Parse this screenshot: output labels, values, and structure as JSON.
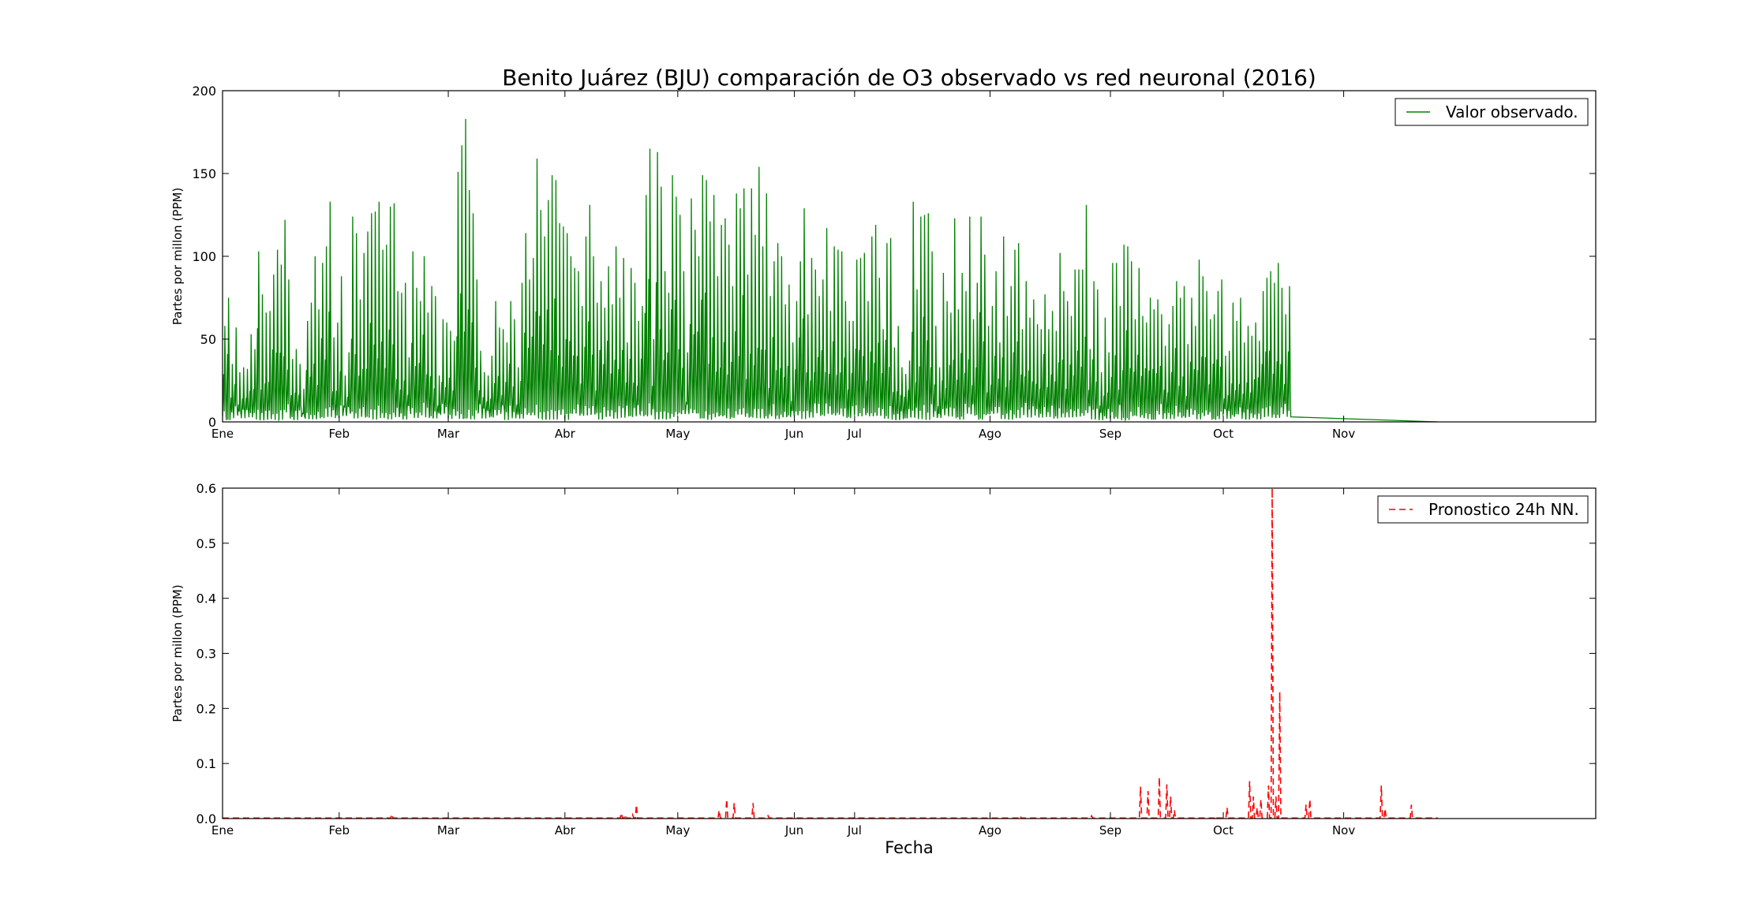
{
  "colors": {
    "observed": "#008000",
    "forecast": "#ff0000",
    "axes": "#000000",
    "background": "#ffffff"
  },
  "chart_data": [
    {
      "type": "line",
      "title": "Benito Juárez (BJU) comparación de O3 observado vs red neuronal (2016)",
      "xlabel": "",
      "ylabel": "Partes por millon (PPM)",
      "x_unit": "day of year (2016)",
      "xlim": [
        0,
        365
      ],
      "ylim": [
        0,
        200
      ],
      "y_ticks": [
        0,
        50,
        100,
        150,
        200
      ],
      "y_tick_labels": [
        "0",
        "50",
        "100",
        "150",
        "200"
      ],
      "x_ticks": [
        0,
        31,
        60,
        91,
        121,
        152,
        168,
        204,
        236,
        266,
        298
      ],
      "x_tick_labels": [
        "Ene",
        "Feb",
        "Mar",
        "Abr",
        "May",
        "Jun",
        "Jul",
        "Ago",
        "Sep",
        "Oct",
        "Nov"
      ],
      "legend_position": "top-right",
      "series": [
        {
          "name": "Valor observado.",
          "style": "solid",
          "x_start": 0,
          "x_end": 323,
          "daily_max": [
            58,
            75,
            35,
            57,
            30,
            33,
            32,
            53,
            44,
            103,
            77,
            66,
            67,
            89,
            104,
            95,
            122,
            86,
            38,
            44,
            35,
            20,
            61,
            72,
            100,
            68,
            96,
            106,
            133,
            51,
            60,
            88,
            28,
            42,
            124,
            114,
            74,
            102,
            115,
            126,
            127,
            133,
            104,
            107,
            130,
            132,
            79,
            78,
            84,
            39,
            103,
            81,
            73,
            100,
            66,
            82,
            76,
            28,
            62,
            60,
            55,
            49,
            151,
            167,
            183,
            140,
            126,
            86,
            43,
            30,
            28,
            40,
            73,
            57,
            56,
            48,
            73,
            62,
            33,
            84,
            114,
            86,
            99,
            159,
            128,
            112,
            134,
            149,
            146,
            120,
            118,
            114,
            100,
            93,
            91,
            70,
            112,
            131,
            100,
            72,
            85,
            69,
            94,
            71,
            106,
            75,
            99,
            48,
            93,
            84,
            61,
            70,
            137,
            165,
            50,
            163,
            142,
            91,
            78,
            149,
            136,
            125,
            91,
            42,
            135,
            116,
            100,
            149,
            146,
            121,
            137,
            88,
            119,
            123,
            107,
            82,
            138,
            129,
            141,
            89,
            141,
            113,
            154,
            106,
            138,
            76,
            97,
            108,
            100,
            71,
            83,
            48,
            73,
            97,
            129,
            65,
            99,
            92,
            76,
            86,
            117,
            67,
            106,
            104,
            103,
            73,
            61,
            61,
            98,
            99,
            102,
            73,
            112,
            119,
            87,
            56,
            108,
            111,
            45,
            58,
            33,
            29,
            37,
            133,
            80,
            124,
            125,
            126,
            103,
            58,
            33,
            90,
            73,
            66,
            123,
            68,
            90,
            79,
            124,
            62,
            84,
            124,
            101,
            58,
            70,
            91,
            48,
            112,
            64,
            82,
            104,
            108,
            56,
            85,
            63,
            74,
            59,
            56,
            77,
            56,
            67,
            55,
            102,
            79,
            73,
            64,
            92,
            92,
            92,
            131,
            44,
            85,
            80,
            30,
            63,
            42,
            96,
            96,
            70,
            107,
            106,
            97,
            62,
            93,
            64,
            60,
            75,
            68,
            74,
            65,
            46,
            59,
            70,
            85,
            75,
            82,
            47,
            75,
            58,
            98,
            88,
            79,
            62,
            65,
            79,
            86,
            40,
            43,
            72,
            61,
            75,
            48,
            58,
            52,
            60,
            49,
            79,
            87,
            91,
            84,
            96,
            81,
            65,
            82
          ]
        }
      ]
    },
    {
      "type": "line",
      "title": "",
      "xlabel": "Fecha",
      "ylabel": "Partes por millon (PPM)",
      "x_unit": "day of year (2016)",
      "xlim": [
        0,
        365
      ],
      "ylim": [
        0,
        0.6
      ],
      "y_ticks": [
        0,
        0.1,
        0.2,
        0.3,
        0.4,
        0.5,
        0.6
      ],
      "y_tick_labels": [
        "0.0",
        "0.1",
        "0.2",
        "0.3",
        "0.4",
        "0.5",
        "0.6"
      ],
      "x_ticks": [
        0,
        31,
        60,
        91,
        121,
        152,
        168,
        204,
        236,
        266,
        298
      ],
      "x_tick_labels": [
        "Ene",
        "Feb",
        "Mar",
        "Abr",
        "May",
        "Jun",
        "Jul",
        "Ago",
        "Sep",
        "Oct",
        "Nov"
      ],
      "legend_position": "top-right",
      "series": [
        {
          "name": "Pronostico 24h NN.",
          "style": "dashed",
          "x_start": 0,
          "x_end": 323,
          "baseline": 0.001,
          "spikes": [
            [
              45,
              0.008
            ],
            [
              106,
              0.01
            ],
            [
              107,
              0.007
            ],
            [
              109,
              0.007
            ],
            [
              110,
              0.025
            ],
            [
              132,
              0.015
            ],
            [
              134,
              0.035
            ],
            [
              136,
              0.028
            ],
            [
              141,
              0.028
            ],
            [
              145,
              0.005
            ],
            [
              212,
              0.005
            ],
            [
              231,
              0.005
            ],
            [
              244,
              0.058
            ],
            [
              246,
              0.05
            ],
            [
              249,
              0.075
            ],
            [
              251,
              0.062
            ],
            [
              252,
              0.04
            ],
            [
              253,
              0.015
            ],
            [
              264,
              0.005
            ],
            [
              267,
              0.02
            ],
            [
              273,
              0.068
            ],
            [
              274,
              0.04
            ],
            [
              275,
              0.02
            ],
            [
              276,
              0.035
            ],
            [
              278,
              0.06
            ],
            [
              279,
              0.6
            ],
            [
              280,
              0.04
            ],
            [
              281,
              0.23
            ],
            [
              288,
              0.025
            ],
            [
              289,
              0.035
            ],
            [
              308,
              0.06
            ],
            [
              309,
              0.018
            ],
            [
              316,
              0.025
            ]
          ]
        }
      ]
    }
  ]
}
